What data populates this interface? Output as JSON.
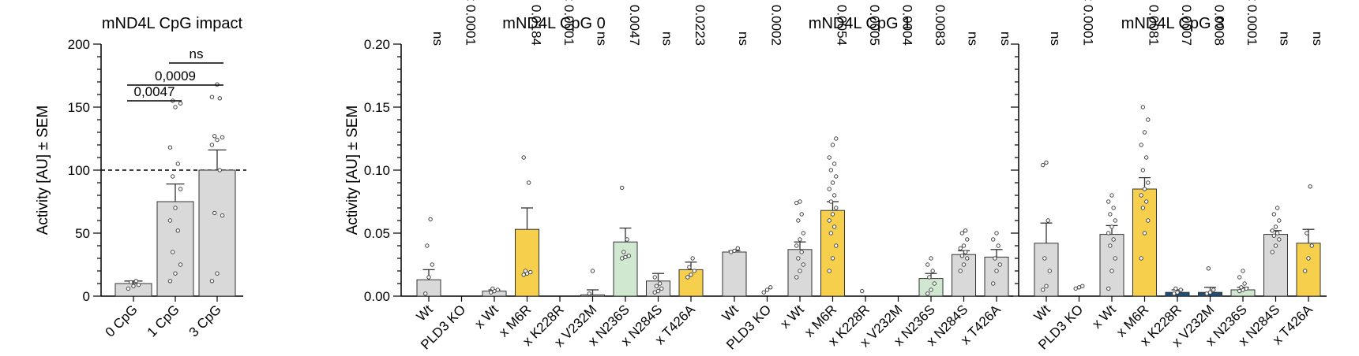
{
  "chart_data": [
    {
      "type": "bar",
      "title": "mND4L CpG impact",
      "ylabel": "Activity [AU] ± SEM",
      "ylim": [
        0,
        200
      ],
      "yticks": [
        "0",
        "50",
        "100",
        "150",
        "200"
      ],
      "reference_line": 100,
      "categories": [
        "0 CpG",
        "1 CpG",
        "3 CpG"
      ],
      "values": [
        10,
        75,
        100
      ],
      "sem": [
        2,
        14,
        16
      ],
      "colors": [
        "#d9d9d9",
        "#d9d9d9",
        "#d9d9d9"
      ],
      "points": [
        [
          6,
          8,
          9,
          11,
          12
        ],
        [
          12,
          18,
          25,
          35,
          52,
          60,
          70,
          85,
          95,
          105,
          118,
          150,
          153,
          155
        ],
        [
          12,
          18,
          64,
          66,
          100,
          120,
          124,
          126,
          127,
          157,
          158,
          168
        ]
      ],
      "brackets": [
        {
          "from": 0,
          "to": 1,
          "label": "0,0047"
        },
        {
          "from": 0,
          "to": 2,
          "label": "0,0009"
        },
        {
          "from": 1,
          "to": 2,
          "label": "ns"
        }
      ]
    },
    {
      "type": "bar",
      "title": "mND4L CpG 0",
      "ylabel": "Activity [AU] ± SEM",
      "ylim": [
        0,
        0.2
      ],
      "yticks": [
        "0.00",
        "0.05",
        "0.10",
        "0.15",
        "0.20"
      ],
      "categories": [
        "Wt",
        "PLD3 KO",
        "x Wt",
        "x M6R",
        "x K228R",
        "x V232M",
        "x N236S",
        "x N284S",
        "x T426A"
      ],
      "values": [
        0.013,
        0.0,
        0.004,
        0.053,
        0.0,
        0.001,
        0.043,
        0.012,
        0.021
      ],
      "sem": [
        0.008,
        0.0,
        0.001,
        0.017,
        0.0,
        0.004,
        0.011,
        0.006,
        0.006
      ],
      "colors": [
        "#d9d9d9",
        "#d9d9d9",
        "#d9d9d9",
        "#f6d04d",
        "#d9d9d9",
        "#d9d9d9",
        "#cfe8cf",
        "#d9d9d9",
        "#f6d04d"
      ],
      "points": [
        [
          0.002,
          0.015,
          0.025,
          0.04,
          0.061
        ],
        [],
        [
          0.003,
          0.004,
          0.005,
          0.006
        ],
        [
          0.017,
          0.018,
          0.019,
          0.02,
          0.09,
          0.11
        ],
        [],
        [
          0.002,
          0.02
        ],
        [
          0.03,
          0.031,
          0.032,
          0.035,
          0.045,
          0.086
        ],
        [
          0.003,
          0.004,
          0.006,
          0.008,
          0.01,
          0.015
        ],
        [
          0.015,
          0.017,
          0.02,
          0.023,
          0.03
        ]
      ],
      "pvalues": [
        "ns",
        "< 0.0001",
        "",
        "0.0184",
        "< 0.0001",
        "ns",
        "0.0047",
        "ns",
        "0.0223"
      ]
    },
    {
      "type": "bar",
      "title": "mND4L CpG 1",
      "ylim": [
        0,
        0.2
      ],
      "categories": [
        "Wt",
        "PLD3 KO",
        "x Wt",
        "x M6R",
        "x K228R",
        "x V232M",
        "x N236S",
        "x N284S",
        "x T426A"
      ],
      "values": [
        0.035,
        0.0,
        0.037,
        0.068,
        0.0,
        0.0,
        0.014,
        0.033,
        0.031
      ],
      "sem": [
        0.001,
        0.0,
        0.006,
        0.007,
        0.0,
        0.0,
        0.004,
        0.003,
        0.006
      ],
      "colors": [
        "#d9d9d9",
        "#d9d9d9",
        "#d9d9d9",
        "#f6d04d",
        "#d9d9d9",
        "#d9d9d9",
        "#cfe8cf",
        "#d9d9d9",
        "#d9d9d9"
      ],
      "points": [
        [
          0.035,
          0.036,
          0.038
        ],
        [
          0.003,
          0.005,
          0.007
        ],
        [
          0.015,
          0.02,
          0.025,
          0.03,
          0.035,
          0.04,
          0.045,
          0.05,
          0.06,
          0.065,
          0.074,
          0.075
        ],
        [
          0.02,
          0.03,
          0.04,
          0.05,
          0.055,
          0.06,
          0.065,
          0.07,
          0.075,
          0.08,
          0.085,
          0.09,
          0.095,
          0.1,
          0.105,
          0.11,
          0.12,
          0.125
        ],
        [
          0.004
        ],
        [],
        [
          0.002,
          0.005,
          0.01,
          0.015,
          0.02,
          0.025,
          0.03
        ],
        [
          0.02,
          0.025,
          0.03,
          0.032,
          0.035,
          0.038,
          0.04,
          0.045,
          0.05,
          0.052
        ],
        [
          0.01,
          0.02,
          0.025,
          0.03,
          0.04,
          0.045,
          0.05
        ]
      ],
      "pvalues": [
        "ns",
        "0.0002",
        "",
        "0.0054",
        "0.0005",
        "0.0004",
        "0.0083",
        "ns",
        "ns"
      ]
    },
    {
      "type": "bar",
      "title": "mND4L CpG 3",
      "ylim": [
        0,
        0.2
      ],
      "categories": [
        "Wt",
        "PLD3 KO",
        "x Wt",
        "x M6R",
        "x K228R",
        "x V232M",
        "x N236S",
        "x N284S",
        "x T426A"
      ],
      "values": [
        0.042,
        0.0,
        0.049,
        0.085,
        0.003,
        0.003,
        0.005,
        0.049,
        0.042
      ],
      "sem": [
        0.016,
        0.0,
        0.007,
        0.009,
        0.002,
        0.004,
        0.002,
        0.003,
        0.011
      ],
      "colors": [
        "#d9d9d9",
        "#d9d9d9",
        "#d9d9d9",
        "#f6d04d",
        "#1f4e79",
        "#1f4e79",
        "#cfe8cf",
        "#d9d9d9",
        "#f6d04d"
      ],
      "points": [
        [
          0.005,
          0.008,
          0.02,
          0.03,
          0.06,
          0.104,
          0.106
        ],
        [
          0.006,
          0.007,
          0.008
        ],
        [
          0.006,
          0.02,
          0.03,
          0.04,
          0.045,
          0.05,
          0.055,
          0.06,
          0.065,
          0.07,
          0.075,
          0.08
        ],
        [
          0.03,
          0.05,
          0.06,
          0.07,
          0.075,
          0.08,
          0.085,
          0.09,
          0.1,
          0.11,
          0.12,
          0.13,
          0.14,
          0.15
        ],
        [
          0.002,
          0.003,
          0.005,
          0.006
        ],
        [
          0.002,
          0.003,
          0.005,
          0.022
        ],
        [
          0.004,
          0.005,
          0.006,
          0.007,
          0.01,
          0.015,
          0.02
        ],
        [
          0.035,
          0.04,
          0.045,
          0.048,
          0.05,
          0.052,
          0.055,
          0.06,
          0.065,
          0.07
        ],
        [
          0.02,
          0.03,
          0.04,
          0.05,
          0.087
        ]
      ],
      "pvalues": [
        "ns",
        "< 0.0001",
        "",
        "0.0081",
        "0.0007",
        "0.0008",
        "< 0.0001",
        "ns",
        "ns"
      ]
    }
  ]
}
